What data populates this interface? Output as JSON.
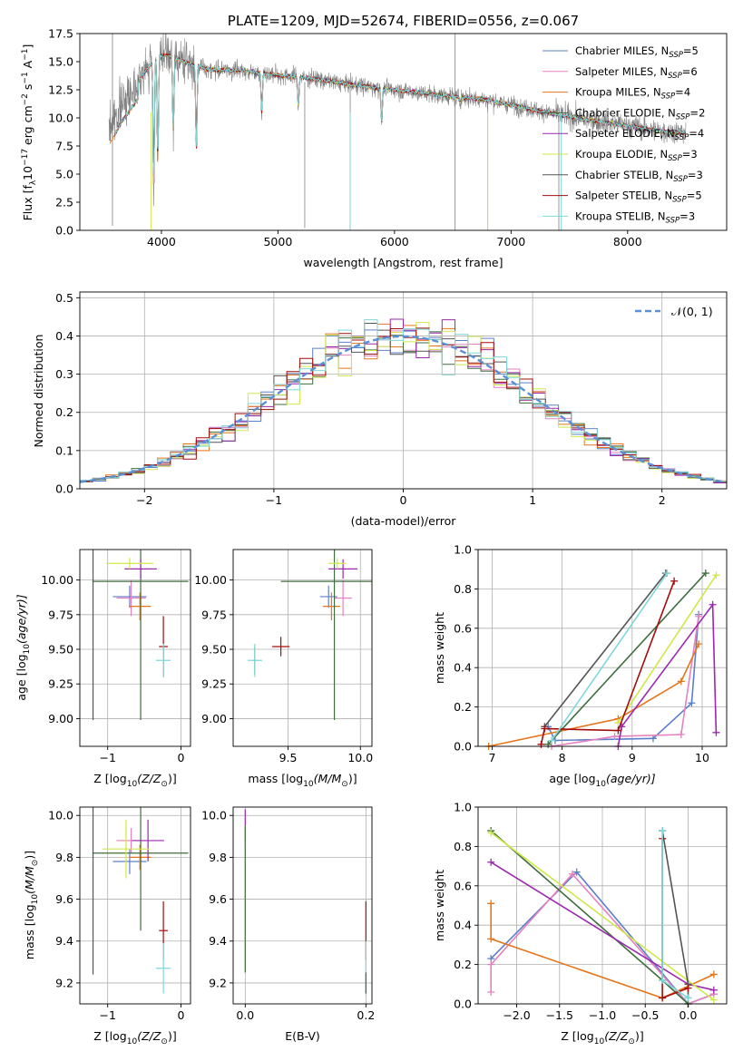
{
  "chart_data": [
    {
      "type": "line",
      "title": "PLATE=1209, MJD=52674, FIBERID=0556, z=0.067",
      "xlabel": "wavelength [Angstrom, rest frame]",
      "ylabel": "Flux [f",
      "ylabel_parts": [
        "Flux [f",
        "λ",
        "10",
        "−17",
        " erg cm",
        "−2",
        " s",
        "−1",
        " A",
        "−1",
        "]"
      ],
      "xlim": [
        3300,
        8850
      ],
      "ylim": [
        0,
        17.5
      ],
      "xticks": [
        4000,
        5000,
        6000,
        7000,
        8000
      ],
      "xtick_labels": [
        "4000",
        "5000",
        "6000",
        "7000",
        "8000"
      ],
      "yticks": [
        0,
        2.5,
        5,
        7.5,
        10,
        12.5,
        15,
        17.5
      ],
      "ytick_labels": [
        "0.0",
        "2.5",
        "5.0",
        "7.5",
        "10.0",
        "12.5",
        "15.0",
        "17.5"
      ],
      "legend_position": "top-right",
      "data_color": "#808080",
      "spectrum_envelope": {
        "x": [
          3550,
          3650,
          3750,
          3850,
          3950,
          4050,
          4200,
          4400,
          4700,
          5000,
          5300,
          5600,
          6000,
          6400,
          6800,
          7200,
          7600,
          8000,
          8300,
          8500
        ],
        "y": [
          9.0,
          11.0,
          12.5,
          14.0,
          15.3,
          15.6,
          15.0,
          14.3,
          14.2,
          13.8,
          13.5,
          13.0,
          12.5,
          12.0,
          11.6,
          10.7,
          9.9,
          9.3,
          8.8,
          8.7
        ]
      },
      "absorption_lines": [
        {
          "x": 3934,
          "y": 3.5
        },
        {
          "x": 3969,
          "y": 6.0
        },
        {
          "x": 4102,
          "y": 8.5
        },
        {
          "x": 4300,
          "y": 7.0
        },
        {
          "x": 4861,
          "y": 10.5
        },
        {
          "x": 5175,
          "y": 11.0
        },
        {
          "x": 5890,
          "y": 9.5
        },
        {
          "x": 6563,
          "y": 11.5
        }
      ],
      "glitches": [
        {
          "x": 3580,
          "y0": 0.4,
          "y1": 17.5
        },
        {
          "x": 3910,
          "y0": 0.0,
          "y1": 0.0
        },
        {
          "x": 5230,
          "y0": 0.2,
          "y1": 13.2
        },
        {
          "x": 5620,
          "y0": 0.0,
          "y1": 12.8
        },
        {
          "x": 6520,
          "y0": 0.0,
          "y1": 17.5
        },
        {
          "x": 6800,
          "y0": 0.0,
          "y1": 11.8
        },
        {
          "x": 7410,
          "y0": 0.0,
          "y1": 10.5
        }
      ],
      "series": [
        {
          "name": "Chabrier MILES, N",
          "nssp": "5",
          "color": "#5d7fc9"
        },
        {
          "name": "Salpeter MILES, N",
          "nssp": "6",
          "color": "#e581bf"
        },
        {
          "name": "Kroupa MILES, N",
          "nssp": "4",
          "color": "#e6751b"
        },
        {
          "name": "Chabrier ELODIE, N",
          "nssp": "2",
          "color": "#3f6e3f"
        },
        {
          "name": "Salpeter ELODIE, N",
          "nssp": "4",
          "color": "#9c27b0"
        },
        {
          "name": "Kroupa ELODIE, N",
          "nssp": "3",
          "color": "#cfe84a"
        },
        {
          "name": "Chabrier STELIB, N",
          "nssp": "3",
          "color": "#555555"
        },
        {
          "name": "Salpeter STELIB, N",
          "nssp": "5",
          "color": "#a50d0d"
        },
        {
          "name": "Kroupa STELIB, N",
          "nssp": "3",
          "color": "#7fd8d8"
        }
      ]
    },
    {
      "type": "line",
      "xlabel": "(data-model)/error",
      "ylabel": "Normed distribution",
      "xlim": [
        -2.5,
        2.5
      ],
      "ylim": [
        0,
        0.515
      ],
      "xticks": [
        -2,
        -1,
        0,
        1,
        2
      ],
      "xtick_labels": [
        "−2",
        "−1",
        "0",
        "1",
        "2"
      ],
      "yticks": [
        0,
        0.1,
        0.2,
        0.3,
        0.4,
        0.5
      ],
      "ytick_labels": [
        "0.0",
        "0.1",
        "0.2",
        "0.3",
        "0.4",
        "0.5"
      ],
      "grid": true,
      "legend": "𝒩(0, 1)",
      "legend_position": "top-right",
      "gaussian_color": "#5b8fd6",
      "bin_width": 0.1
    },
    {
      "type": "scatter",
      "xlabel": "Z [log",
      "xlabel_parts": [
        "Z [log",
        "10",
        "(Z/Z",
        "⊙",
        ")]"
      ],
      "ylabel_parts": [
        "age  [log",
        "10",
        "(age/yr)]"
      ],
      "xlim": [
        -1.38,
        0.13
      ],
      "ylim": [
        8.8,
        10.22
      ],
      "xticks": [
        -1,
        0
      ],
      "xtick_labels": [
        "−1",
        "0"
      ],
      "yticks": [
        9.0,
        9.25,
        9.5,
        9.75,
        10.0
      ],
      "ytick_labels": [
        "9.00",
        "9.25",
        "9.50",
        "9.75",
        "10.00"
      ],
      "points": [
        {
          "x": -0.7,
          "xerr": 0.23,
          "y": 9.88,
          "yerr": 0.08,
          "s": 0
        },
        {
          "x": -0.68,
          "xerr": 0.2,
          "y": 9.87,
          "yerr": 0.13,
          "s": 1
        },
        {
          "x": -0.56,
          "xerr": 0.15,
          "y": 9.81,
          "yerr": 0.1,
          "s": 2
        },
        {
          "x": -0.55,
          "xerr": 0.65,
          "y": 9.99,
          "yerr": 1.0,
          "s": 3
        },
        {
          "x": -0.55,
          "xerr": 0.22,
          "y": 10.08,
          "yerr": 0.07,
          "s": 4
        },
        {
          "x": -0.7,
          "xerr": 0.32,
          "y": 10.12,
          "yerr": 0.04,
          "s": 5
        },
        {
          "x": -1.2,
          "xerr": 0.01,
          "y": 9.99,
          "yerr": 1.0,
          "s": 6
        },
        {
          "x": -0.24,
          "xerr": 0.06,
          "y": 9.52,
          "yerr": 0.22,
          "s": 7
        },
        {
          "x": -0.24,
          "xerr": 0.1,
          "y": 9.42,
          "yerr": 0.12,
          "s": 8
        }
      ]
    },
    {
      "type": "scatter",
      "xlabel_parts": [
        "mass [log",
        "10",
        "(M/M",
        "⊙",
        ")]"
      ],
      "xlim": [
        9.12,
        10.08
      ],
      "ylim": [
        8.8,
        10.22
      ],
      "xticks": [
        9.5,
        10.0
      ],
      "xtick_labels": [
        "9.5",
        "10.0"
      ],
      "yticks": [
        9.0,
        9.25,
        9.5,
        9.75,
        10.0
      ],
      "ytick_labels": [
        "9.00",
        "9.25",
        "9.50",
        "9.75",
        "10.00"
      ],
      "points": [
        {
          "x": 9.78,
          "xerr": 0.06,
          "y": 9.88,
          "yerr": 0.08,
          "s": 0
        },
        {
          "x": 9.88,
          "xerr": 0.06,
          "y": 9.87,
          "yerr": 0.13,
          "s": 1
        },
        {
          "x": 9.8,
          "xerr": 0.06,
          "y": 9.81,
          "yerr": 0.1,
          "s": 2
        },
        {
          "x": 9.82,
          "xerr": 0.37,
          "y": 9.99,
          "yerr": 1.0,
          "s": 3
        },
        {
          "x": 9.88,
          "xerr": 0.1,
          "y": 10.08,
          "yerr": 0.07,
          "s": 4
        },
        {
          "x": 9.84,
          "xerr": 0.06,
          "y": 10.12,
          "yerr": 0.04,
          "s": 5
        },
        {
          "x": 9.27,
          "xerr": 0.01,
          "y": 9.42,
          "yerr": 0.1,
          "s": 6
        },
        {
          "x": 9.45,
          "xerr": 0.06,
          "y": 9.52,
          "yerr": 0.07,
          "s": 7
        },
        {
          "x": 9.27,
          "xerr": 0.05,
          "y": 9.42,
          "yerr": 0.12,
          "s": 8
        }
      ]
    },
    {
      "type": "line",
      "xlabel_parts": [
        "age  [log",
        "10",
        "(age/yr)]"
      ],
      "ylabel": "mass weight",
      "xlim": [
        6.8,
        10.35
      ],
      "ylim": [
        0,
        1.0
      ],
      "xticks": [
        7,
        8,
        9,
        10
      ],
      "xtick_labels": [
        "7",
        "8",
        "9",
        "10"
      ],
      "yticks": [
        0,
        0.2,
        0.4,
        0.6,
        0.8,
        1.0
      ],
      "ytick_labels": [
        "0.0",
        "0.2",
        "0.4",
        "0.6",
        "0.8",
        "1.0"
      ],
      "grid": true,
      "series": [
        {
          "s": 0,
          "x": [
            7.8,
            7.9,
            9.3,
            9.85,
            9.95
          ],
          "y": [
            0.1,
            0.03,
            0.04,
            0.22,
            0.67
          ]
        },
        {
          "s": 1,
          "x": [
            7.85,
            8.75,
            9.7,
            9.95
          ],
          "y": [
            0.0,
            0.05,
            0.06,
            0.66
          ]
        },
        {
          "s": 2,
          "x": [
            6.95,
            8.8,
            9.7,
            9.95
          ],
          "y": [
            0.0,
            0.14,
            0.33,
            0.52
          ]
        },
        {
          "s": 3,
          "x": [
            7.8,
            10.05
          ],
          "y": [
            0.01,
            0.88
          ]
        },
        {
          "s": 4,
          "x": [
            8.8,
            8.85,
            10.15,
            10.2
          ],
          "y": [
            0.0,
            0.1,
            0.72,
            0.07
          ]
        },
        {
          "s": 5,
          "x": [
            8.8,
            10.2
          ],
          "y": [
            0.12,
            0.87
          ]
        },
        {
          "s": 6,
          "x": [
            7.75,
            9.48
          ],
          "y": [
            0.1,
            0.88
          ]
        },
        {
          "s": 7,
          "x": [
            7.7,
            7.75,
            8.8,
            9.6
          ],
          "y": [
            0.01,
            0.09,
            0.08,
            0.84
          ]
        },
        {
          "s": 8,
          "x": [
            7.85,
            9.5
          ],
          "y": [
            0.03,
            0.88
          ]
        }
      ]
    },
    {
      "type": "scatter",
      "xlabel_parts": [
        "Z [log",
        "10",
        "(Z/Z",
        "⊙",
        ")]"
      ],
      "ylabel_parts": [
        "mass [log",
        "10",
        "(M/M",
        "⊙",
        ")]"
      ],
      "xlim": [
        -1.38,
        0.13
      ],
      "ylim": [
        9.1,
        10.04
      ],
      "xticks": [
        -1,
        0
      ],
      "xtick_labels": [
        "−1",
        "0"
      ],
      "yticks": [
        9.2,
        9.4,
        9.6,
        9.8,
        10.0
      ],
      "ytick_labels": [
        "9.2",
        "9.4",
        "9.6",
        "9.8",
        "10.0"
      ],
      "points": [
        {
          "x": -0.7,
          "xerr": 0.23,
          "y": 9.78,
          "yerr": 0.06,
          "s": 0
        },
        {
          "x": -0.68,
          "xerr": 0.2,
          "y": 9.88,
          "yerr": 0.06,
          "s": 1
        },
        {
          "x": -0.56,
          "xerr": 0.15,
          "y": 9.8,
          "yerr": 0.06,
          "s": 2
        },
        {
          "x": -0.55,
          "xerr": 0.65,
          "y": 9.82,
          "yerr": 0.37,
          "s": 3
        },
        {
          "x": -0.45,
          "xerr": 0.22,
          "y": 9.88,
          "yerr": 0.1,
          "s": 4
        },
        {
          "x": -0.75,
          "xerr": 0.32,
          "y": 9.84,
          "yerr": 0.14,
          "s": 5
        },
        {
          "x": -1.2,
          "xerr": 0.01,
          "y": 9.82,
          "yerr": 0.58,
          "s": 6
        },
        {
          "x": -0.24,
          "xerr": 0.06,
          "y": 9.45,
          "yerr": 0.14,
          "s": 7
        },
        {
          "x": -0.24,
          "xerr": 0.1,
          "y": 9.27,
          "yerr": 0.12,
          "s": 8
        }
      ]
    },
    {
      "type": "scatter",
      "xlabel": "E(B-V)",
      "xlim": [
        -0.02,
        0.21
      ],
      "ylim": [
        9.1,
        10.04
      ],
      "xticks": [
        0.0,
        0.2
      ],
      "xtick_labels": [
        "0.0",
        "0.2"
      ],
      "yticks": [
        9.2,
        9.4,
        9.6,
        9.8,
        10.0
      ],
      "ytick_labels": [
        "9.2",
        "9.4",
        "9.6",
        "9.8",
        "10.0"
      ],
      "points": [
        {
          "x": 0.0,
          "y": 9.95,
          "yerr": 0.08,
          "s": 4
        },
        {
          "x": 0.0,
          "y": 9.6,
          "yerr": 0.35,
          "s": 5
        },
        {
          "x": 0.0,
          "y": 9.6,
          "yerr": 0.35,
          "s": 3
        },
        {
          "x": 0.2,
          "y": 9.45,
          "yerr": 0.14,
          "s": 7
        },
        {
          "x": 0.2,
          "y": 9.27,
          "yerr": 0.13,
          "s": 8
        },
        {
          "x": 0.2,
          "y": 9.2,
          "yerr": 0.05,
          "s": 6
        }
      ]
    },
    {
      "type": "line",
      "xlabel_parts": [
        "Z [log",
        "10",
        "(Z/Z",
        "⊙",
        ")]"
      ],
      "ylabel": "mass weight",
      "xlim": [
        -2.45,
        0.45
      ],
      "ylim": [
        0,
        1.0
      ],
      "xticks": [
        -2.0,
        -1.5,
        -1.0,
        -0.5,
        0.0
      ],
      "xtick_labels": [
        "−2.0",
        "−1.5",
        "−1.0",
        "−0.5",
        "0.0"
      ],
      "yticks": [
        0,
        0.2,
        0.4,
        0.6,
        0.8,
        1.0
      ],
      "ytick_labels": [
        "0.0",
        "0.2",
        "0.4",
        "0.6",
        "0.8",
        "1.0"
      ],
      "grid": true,
      "series": [
        {
          "s": 0,
          "x": [
            -2.3,
            -1.3,
            0.0,
            0.3
          ],
          "y": [
            0.23,
            0.67,
            0.0,
            0.05
          ]
        },
        {
          "s": 1,
          "x": [
            -2.3,
            -2.3,
            -1.35,
            0.0,
            0.3
          ],
          "y": [
            0.06,
            0.2,
            0.66,
            0.0,
            0.05
          ]
        },
        {
          "s": 2,
          "x": [
            -2.3,
            -2.3,
            -0.3,
            0.3
          ],
          "y": [
            0.51,
            0.33,
            0.03,
            0.15
          ]
        },
        {
          "s": 3,
          "x": [
            -2.3,
            -0.3,
            0.0
          ],
          "y": [
            0.88,
            0.12,
            0.0
          ]
        },
        {
          "s": 4,
          "x": [
            -2.3,
            0.0,
            0.3
          ],
          "y": [
            0.72,
            0.1,
            0.07
          ]
        },
        {
          "s": 5,
          "x": [
            -2.3,
            0.3
          ],
          "y": [
            0.87,
            0.02
          ]
        },
        {
          "s": 6,
          "x": [
            -0.3,
            0.0,
            0.0
          ],
          "y": [
            0.88,
            0.1,
            0.03
          ]
        },
        {
          "s": 7,
          "x": [
            -0.3,
            -0.3,
            0.0
          ],
          "y": [
            0.84,
            0.03,
            0.08
          ]
        },
        {
          "s": 8,
          "x": [
            -0.3,
            -0.3,
            0.0
          ],
          "y": [
            0.88,
            0.12,
            0.03
          ]
        }
      ]
    }
  ]
}
